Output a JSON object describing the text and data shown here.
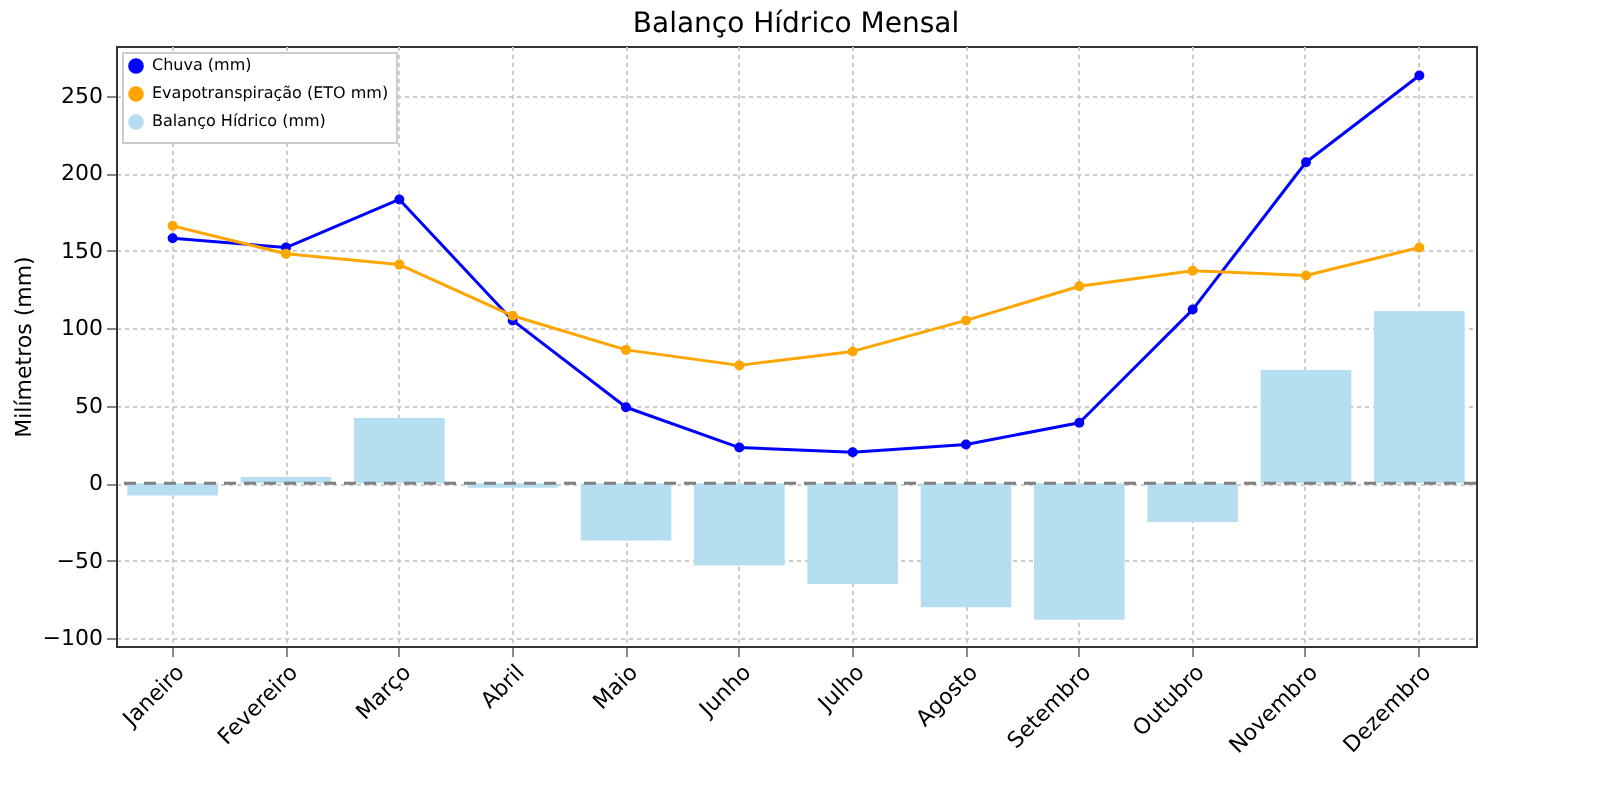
{
  "chart_data": {
    "type": "line",
    "title": "Balanço Hídrico Mensal",
    "ylabel": "Milímetros (mm)",
    "categories": [
      "Janeiro",
      "Fevereiro",
      "Março",
      "Abril",
      "Maio",
      "Junho",
      "Julho",
      "Agosto",
      "Setembro",
      "Outubro",
      "Novembro",
      "Dezembro"
    ],
    "series": [
      {
        "name": "Chuva (mm)",
        "color": "#0000ff",
        "values": [
          158,
          152,
          183,
          105,
          49,
          23,
          20,
          25,
          39,
          112,
          207,
          263
        ]
      },
      {
        "name": "Evapotranspiração (ETO mm)",
        "color": "#ffa500",
        "values": [
          166,
          148,
          141,
          108,
          86,
          76,
          85,
          105,
          127,
          137,
          134,
          152
        ]
      },
      {
        "name": "Balanço Hídrico (mm)",
        "type": "bar",
        "color": "#b5dff0",
        "values": [
          -8,
          4,
          42,
          -3,
          -37,
          -53,
          -65,
          -80,
          -88,
          -25,
          73,
          111
        ]
      }
    ],
    "ylim": [
      -105,
      282
    ],
    "yticks": [
      -100,
      -50,
      0,
      50,
      100,
      150,
      200,
      250
    ],
    "ref_lines": [
      {
        "axis": "y",
        "value": 0,
        "color": "#808080",
        "line_style": "dashed"
      }
    ],
    "grid": true,
    "legend": "top left",
    "marker": "circle"
  }
}
